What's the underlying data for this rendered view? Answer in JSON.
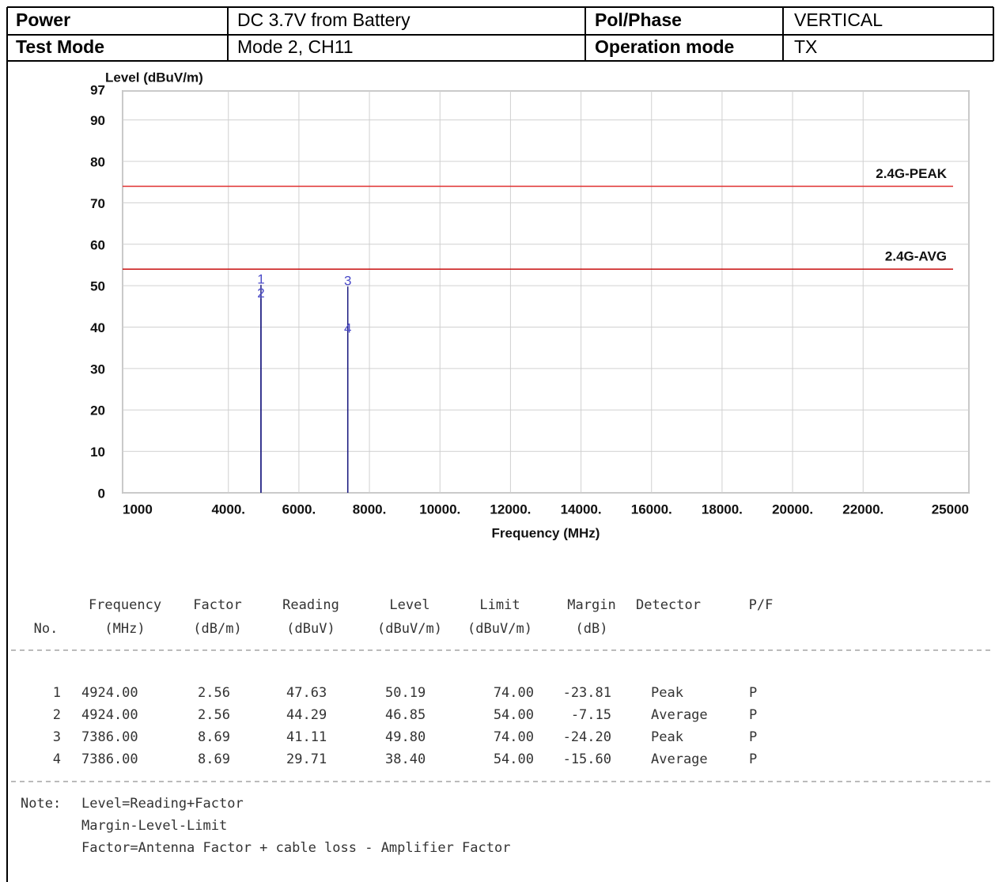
{
  "header": {
    "rows": [
      [
        "Power",
        "DC 3.7V from Battery",
        "Pol/Phase",
        "VERTICAL"
      ],
      [
        "Test Mode",
        "Mode 2, CH11",
        "Operation mode",
        "TX"
      ]
    ]
  },
  "chart_data": {
    "type": "spike",
    "ylabel": "Level (dBuV/m)",
    "xlabel": "Frequency (MHz)",
    "xlim": [
      1000,
      25000
    ],
    "xticks": [
      1000,
      {
        "value": 4000,
        "label": "4000."
      },
      {
        "value": 6000,
        "label": "6000."
      },
      {
        "value": 8000,
        "label": "8000."
      },
      {
        "value": 10000,
        "label": "10000."
      },
      {
        "value": 12000,
        "label": "12000."
      },
      {
        "value": 14000,
        "label": "14000."
      },
      {
        "value": 16000,
        "label": "16000."
      },
      {
        "value": 18000,
        "label": "18000."
      },
      {
        "value": 20000,
        "label": "20000."
      },
      {
        "value": 22000,
        "label": "22000."
      },
      25000
    ],
    "ylim": [
      0,
      97
    ],
    "yticks": [
      0,
      10,
      20,
      30,
      40,
      50,
      60,
      70,
      80,
      90,
      97
    ],
    "grid": true,
    "limits": [
      {
        "name": "2.4G-PEAK",
        "value": 74,
        "color": "#e03030"
      },
      {
        "name": "2.4G-AVG",
        "value": 54,
        "color": "#c81010"
      }
    ],
    "markers": {
      "labels": [
        "1",
        "2",
        "3",
        "4"
      ],
      "x": [
        4924,
        4924,
        7386,
        7386
      ],
      "values": [
        50.19,
        46.85,
        49.8,
        38.4
      ],
      "color": "#1c1c80"
    }
  },
  "table": {
    "columns": [
      [
        "No."
      ],
      [
        "Frequency",
        "(MHz)"
      ],
      [
        "Factor",
        "(dB/m)"
      ],
      [
        "Reading",
        "(dBuV)"
      ],
      [
        "Level",
        "(dBuV/m)"
      ],
      [
        "Limit",
        "(dBuV/m)"
      ],
      [
        "Margin",
        "(dB)"
      ],
      [
        "Detector"
      ],
      [
        "P/F"
      ]
    ],
    "rows": [
      [
        "1",
        "4924.00",
        "2.56",
        "47.63",
        "50.19",
        "74.00",
        "-23.81",
        "Peak",
        "P"
      ],
      [
        "2",
        "4924.00",
        "2.56",
        "44.29",
        "46.85",
        "54.00",
        "-7.15",
        "Average",
        "P"
      ],
      [
        "3",
        "7386.00",
        "8.69",
        "41.11",
        "49.80",
        "74.00",
        "-24.20",
        "Peak",
        "P"
      ],
      [
        "4",
        "7386.00",
        "8.69",
        "29.71",
        "38.40",
        "54.00",
        "-15.60",
        "Average",
        "P"
      ]
    ]
  },
  "notes": {
    "label": "Note:",
    "lines": [
      "Level=Reading+Factor",
      "Margin-Level-Limit",
      "Factor=Antenna Factor + cable loss - Amplifier Factor"
    ]
  }
}
